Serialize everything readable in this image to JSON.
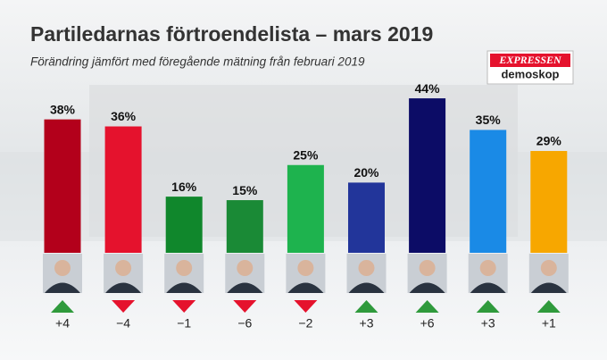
{
  "chart_data": {
    "type": "bar",
    "title": "Partiledarnas förtroendelista – mars 2019",
    "subtitle": "Förändring jämfört med föregående mätning från februari 2019",
    "logo": {
      "brand": "EXPRESSEN",
      "sub": "demoskop"
    },
    "values": [
      38,
      36,
      16,
      15,
      25,
      20,
      44,
      35,
      29
    ],
    "value_labels": [
      "38%",
      "36%",
      "16%",
      "15%",
      "25%",
      "20%",
      "44%",
      "35%",
      "29%"
    ],
    "colors": [
      "#b3001b",
      "#e5122d",
      "#10872c",
      "#1a8a36",
      "#1eb34e",
      "#22359a",
      "#0c0c66",
      "#1a8ae6",
      "#f7a700"
    ],
    "changes": [
      4,
      -4,
      -1,
      -6,
      -2,
      3,
      6,
      3,
      1
    ],
    "change_labels": [
      "+4",
      "−4",
      "−1",
      "−6",
      "−2",
      "+3",
      "+6",
      "+3",
      "+1"
    ],
    "up_color": "#2f9a3c",
    "down_color": "#e5122d"
  }
}
